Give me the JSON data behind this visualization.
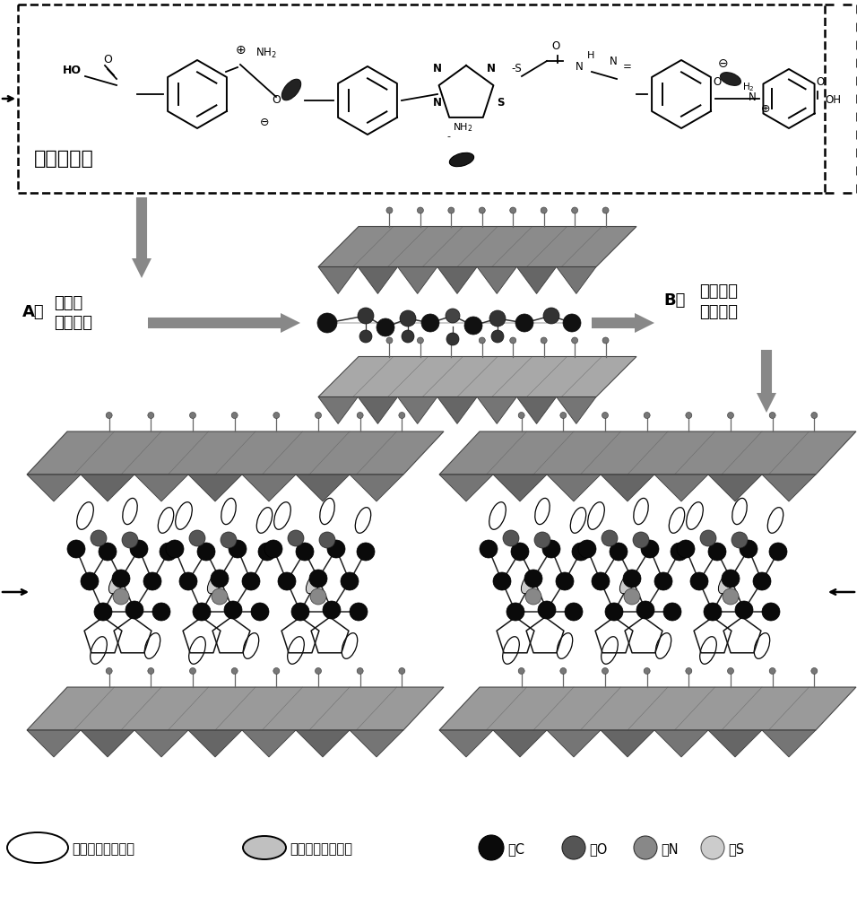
{
  "background_color": "#ffffff",
  "dashed_box_label": "三氮唑示例",
  "label_A_line1": "A： 质子化",
  "label_A_line2": "探针修饰",
  "label_B_line1": "返混沉淠",
  "label_B_line2": "插层组装",
  "label_B_prefix": "B：",
  "legend": [
    {
      "label": "：氯离子探针链段"
    },
    {
      "label": "：客体分子间氢键"
    },
    {
      "label": "：C"
    },
    {
      "label": "：O"
    },
    {
      "label": "：N"
    },
    {
      "label": "：S"
    }
  ],
  "arrow_gray": "#888888",
  "dark_gray": "#555555",
  "layer_color1": "#777777",
  "layer_color2": "#999999",
  "layer_color3": "#aaaaaa"
}
